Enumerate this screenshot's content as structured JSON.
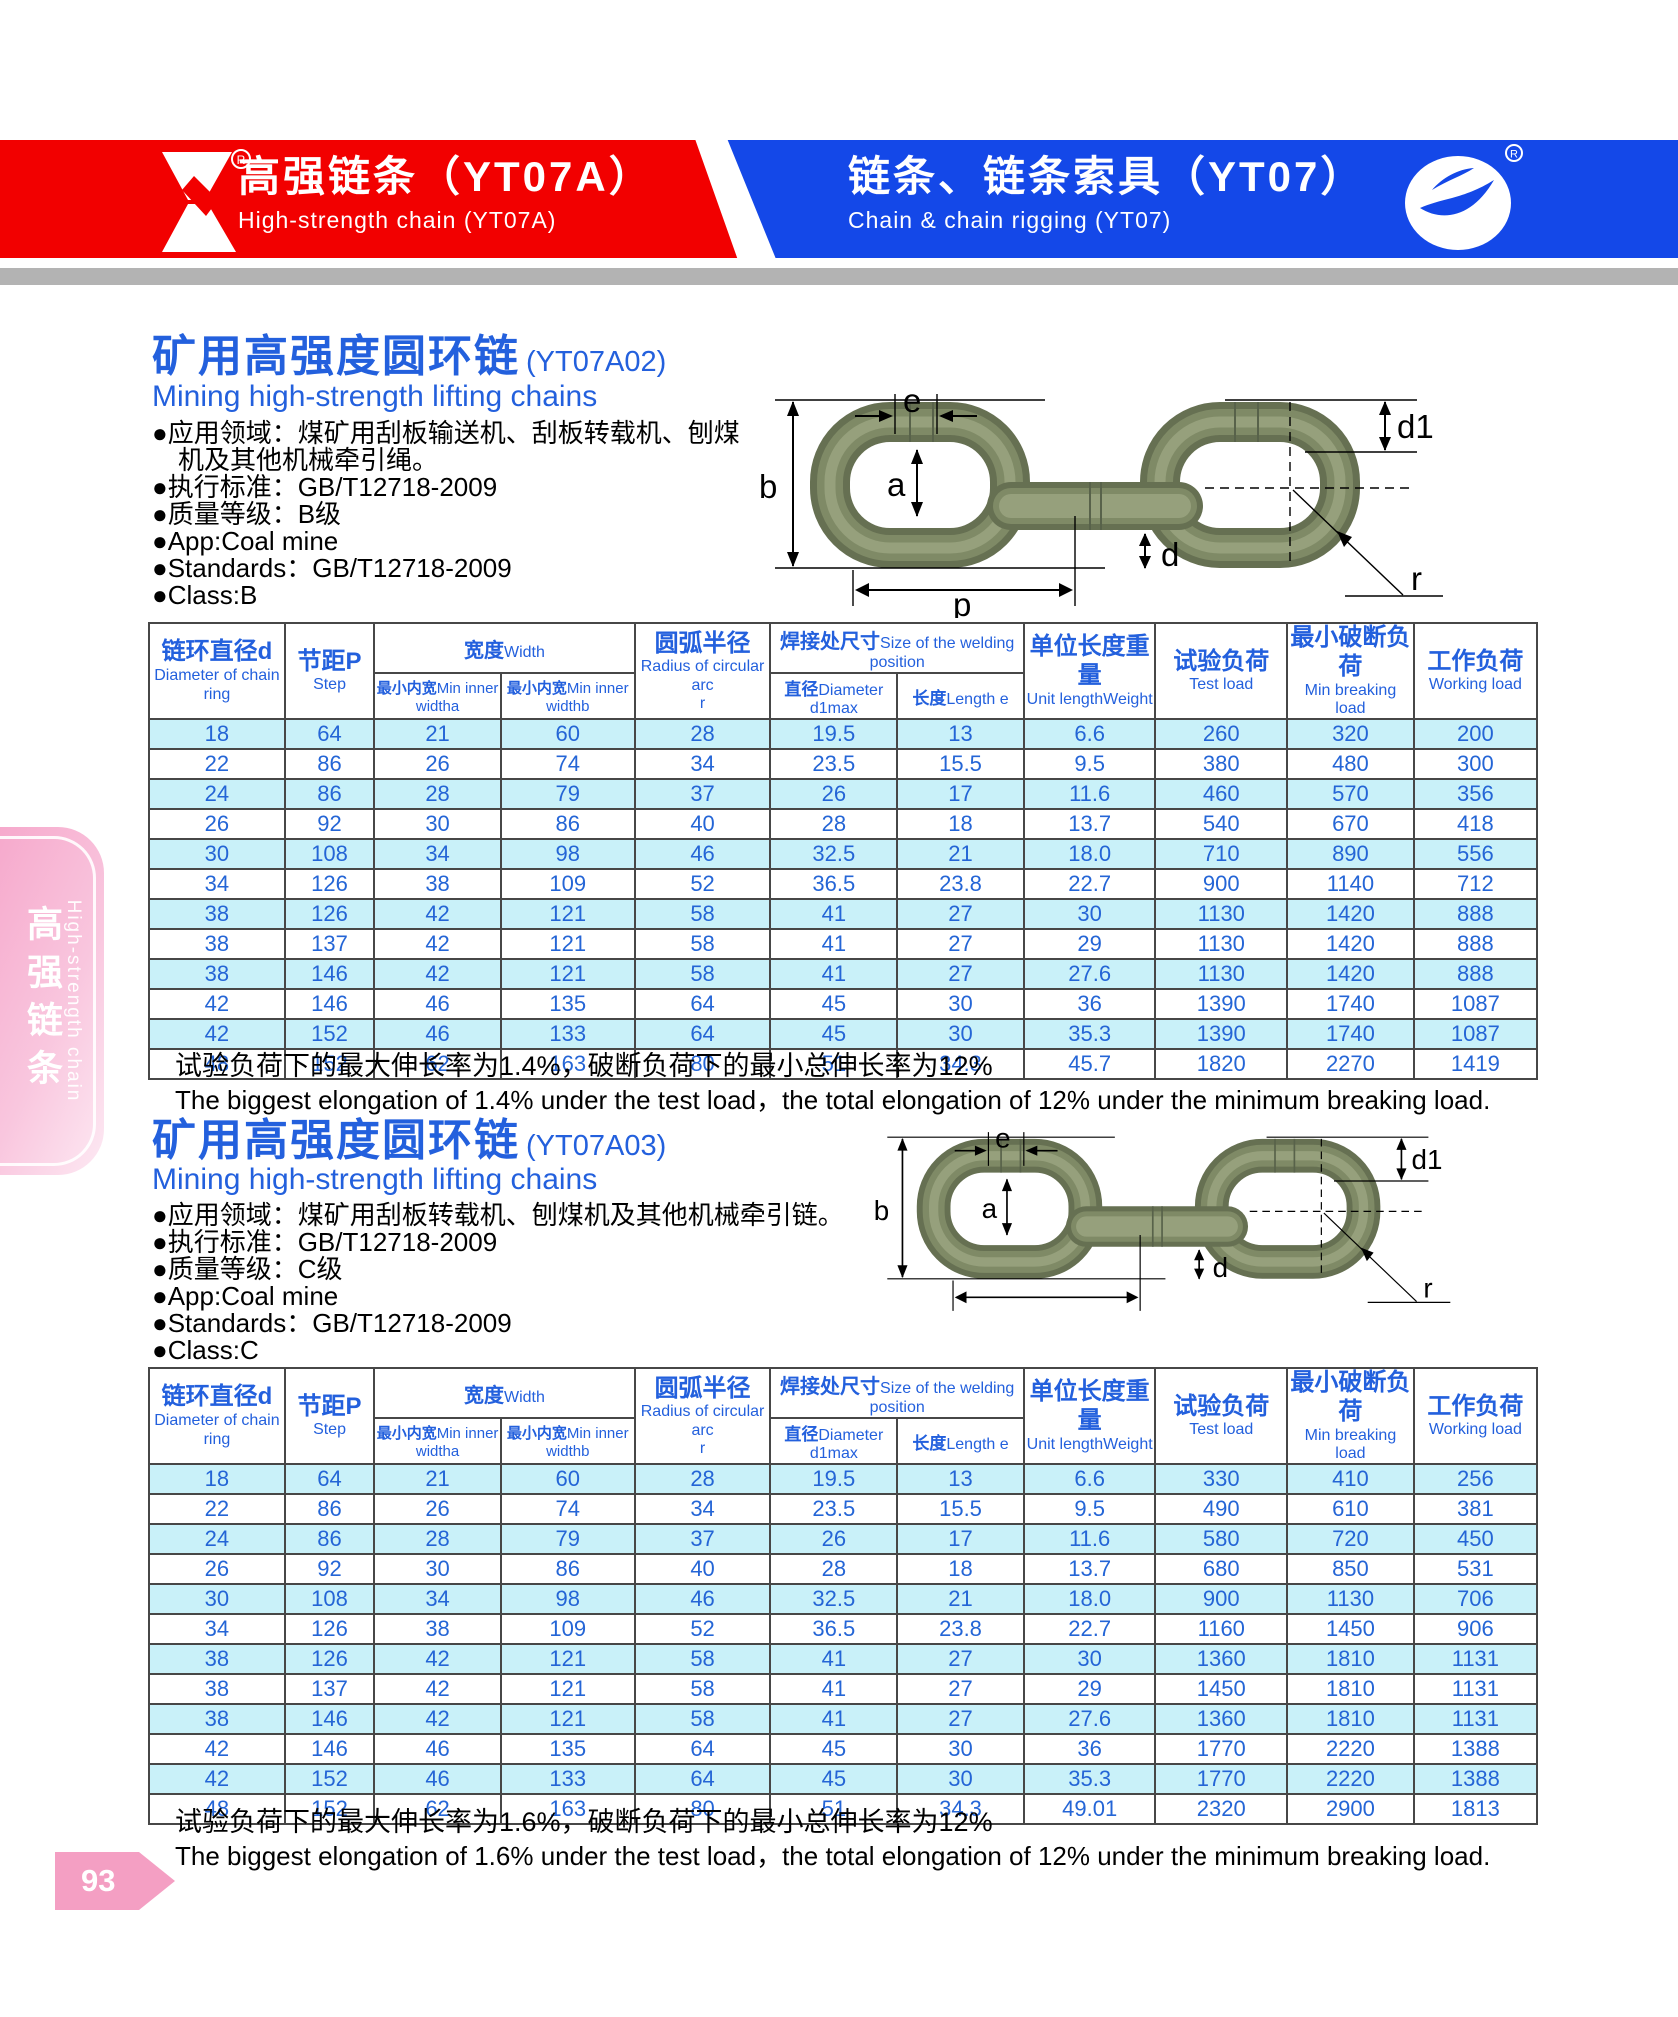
{
  "colors": {
    "band_red": "#f20000",
    "band_blue": "#1448e8",
    "accent_blue": "#2360dd",
    "table_text_blue": "#2465d6",
    "row_cyan": "#c9f1f9",
    "gray_band": "#b3b3b3",
    "sidebar_pink": "#f6a9cc",
    "page_pink": "#f49fc3",
    "link_olive": "#667052"
  },
  "header": {
    "left": {
      "title_cn": "高强链条（YT07A）",
      "subtitle_en": "High-strength chain (YT07A)"
    },
    "right": {
      "title_cn": "链条、链条索具（YT07）",
      "subtitle_en": "Chain & chain rigging (YT07)"
    },
    "registered_mark": "R"
  },
  "sidebar": {
    "label_cn": "高强链条",
    "label_en": "High-strength chain"
  },
  "page": {
    "number": "93"
  },
  "diagram_labels": {
    "e": "e",
    "b": "b",
    "a": "a",
    "d": "d",
    "d1": "d1",
    "r": "r"
  },
  "table_header": {
    "diameter_cn": "链环直径d",
    "diameter_en": "Diameter of chain ring",
    "step_cn": "节距P",
    "step_en": "Step",
    "width_cn": "宽度",
    "width_en": "Width",
    "width_a_cn": "最小内宽",
    "width_a_en": "Min inner widtha",
    "width_b_cn": "最小内宽",
    "width_b_en": "Min inner widthb",
    "radius_cn": "圆弧半径",
    "radius_en": "Radius of circular arc",
    "radius_sym": "r",
    "weld_cn": "焊接处尺寸",
    "weld_en": "Size of the welding position",
    "weld_d1_cn": "直径",
    "weld_d1_en": "Diameter d1max",
    "weld_e_cn": "长度",
    "weld_e_en": "Length e",
    "unit_cn": "单位长度重量",
    "unit_en": "Unit lengthWeight",
    "test_cn": "试验负荷",
    "test_en": "Test load",
    "break_cn": "最小破断负荷",
    "break_en": "Min breaking load",
    "work_cn": "工作负荷",
    "work_en": "Working load"
  },
  "sections": [
    {
      "title_cn": "矿用高强度圆环链",
      "title_code": "(YT07A02)",
      "subtitle_en": "Mining high-strength lifting chains",
      "bullets": [
        "●应用领域：煤矿用刮板输送机、刮板转载机、刨煤机及其他机械牵引绳。",
        "●执行标准：GB/T12718-2009",
        "●质量等级：B级",
        "●App:Coal mine",
        "●Standards：GB/T12718-2009",
        "●Class:B"
      ],
      "diagram_p_label": "p",
      "rows": [
        [
          "18",
          "64",
          "21",
          "60",
          "28",
          "19.5",
          "13",
          "6.6",
          "260",
          "320",
          "200"
        ],
        [
          "22",
          "86",
          "26",
          "74",
          "34",
          "23.5",
          "15.5",
          "9.5",
          "380",
          "480",
          "300"
        ],
        [
          "24",
          "86",
          "28",
          "79",
          "37",
          "26",
          "17",
          "11.6",
          "460",
          "570",
          "356"
        ],
        [
          "26",
          "92",
          "30",
          "86",
          "40",
          "28",
          "18",
          "13.7",
          "540",
          "670",
          "418"
        ],
        [
          "30",
          "108",
          "34",
          "98",
          "46",
          "32.5",
          "21",
          "18.0",
          "710",
          "890",
          "556"
        ],
        [
          "34",
          "126",
          "38",
          "109",
          "52",
          "36.5",
          "23.8",
          "22.7",
          "900",
          "1140",
          "712"
        ],
        [
          "38",
          "126",
          "42",
          "121",
          "58",
          "41",
          "27",
          "30",
          "1130",
          "1420",
          "888"
        ],
        [
          "38",
          "137",
          "42",
          "121",
          "58",
          "41",
          "27",
          "29",
          "1130",
          "1420",
          "888"
        ],
        [
          "38",
          "146",
          "42",
          "121",
          "58",
          "41",
          "27",
          "27.6",
          "1130",
          "1420",
          "888"
        ],
        [
          "42",
          "146",
          "46",
          "135",
          "64",
          "45",
          "30",
          "36",
          "1390",
          "1740",
          "1087"
        ],
        [
          "42",
          "152",
          "46",
          "133",
          "64",
          "45",
          "30",
          "35.3",
          "1390",
          "1740",
          "1087"
        ],
        [
          "48",
          "152",
          "62",
          "163",
          "80",
          "51",
          "34.3",
          "45.7",
          "1820",
          "2270",
          "1419"
        ]
      ],
      "note_cn": "试验负荷下的最大伸长率为1.4%，破断负荷下的最小总伸长率为12%",
      "note_en": "The biggest elongation of 1.4% under the test load，the total elongation of 12% under the minimum breaking load."
    },
    {
      "title_cn": "矿用高强度圆环链",
      "title_code": "(YT07A03)",
      "subtitle_en": "Mining high-strength lifting chains",
      "bullets": [
        "●应用领域：煤矿用刮板转载机、刨煤机及其他机械牵引链。",
        "●执行标准：GB/T12718-2009",
        "●质量等级：C级",
        "●App:Coal mine",
        "●Standards：GB/T12718-2009",
        "●Class:C"
      ],
      "diagram_p_label": "",
      "rows": [
        [
          "18",
          "64",
          "21",
          "60",
          "28",
          "19.5",
          "13",
          "6.6",
          "330",
          "410",
          "256"
        ],
        [
          "22",
          "86",
          "26",
          "74",
          "34",
          "23.5",
          "15.5",
          "9.5",
          "490",
          "610",
          "381"
        ],
        [
          "24",
          "86",
          "28",
          "79",
          "37",
          "26",
          "17",
          "11.6",
          "580",
          "720",
          "450"
        ],
        [
          "26",
          "92",
          "30",
          "86",
          "40",
          "28",
          "18",
          "13.7",
          "680",
          "850",
          "531"
        ],
        [
          "30",
          "108",
          "34",
          "98",
          "46",
          "32.5",
          "21",
          "18.0",
          "900",
          "1130",
          "706"
        ],
        [
          "34",
          "126",
          "38",
          "109",
          "52",
          "36.5",
          "23.8",
          "22.7",
          "1160",
          "1450",
          "906"
        ],
        [
          "38",
          "126",
          "42",
          "121",
          "58",
          "41",
          "27",
          "30",
          "1360",
          "1810",
          "1131"
        ],
        [
          "38",
          "137",
          "42",
          "121",
          "58",
          "41",
          "27",
          "29",
          "1450",
          "1810",
          "1131"
        ],
        [
          "38",
          "146",
          "42",
          "121",
          "58",
          "41",
          "27",
          "27.6",
          "1360",
          "1810",
          "1131"
        ],
        [
          "42",
          "146",
          "46",
          "135",
          "64",
          "45",
          "30",
          "36",
          "1770",
          "2220",
          "1388"
        ],
        [
          "42",
          "152",
          "46",
          "133",
          "64",
          "45",
          "30",
          "35.3",
          "1770",
          "2220",
          "1388"
        ],
        [
          "48",
          "152",
          "62",
          "163",
          "80",
          "51",
          "34.3",
          "49.01",
          "2320",
          "2900",
          "1813"
        ]
      ],
      "note_cn": "试验负荷下的最大伸长率为1.6%，破断负荷下的最小总伸长率为12%",
      "note_en": "The biggest elongation of 1.6% under the test load，the total elongation of 12% under the minimum breaking load."
    }
  ]
}
